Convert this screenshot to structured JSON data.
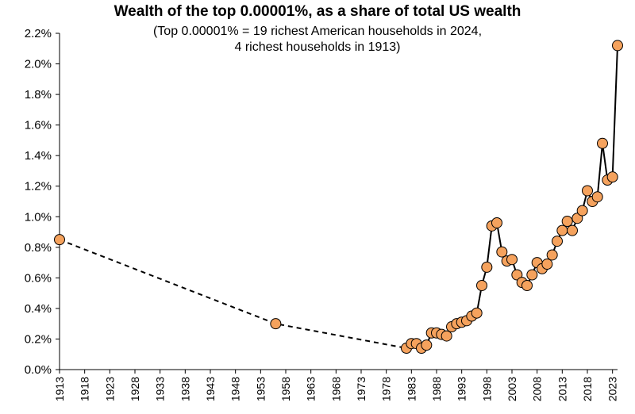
{
  "chart_data": {
    "type": "line",
    "title": "Wealth of the top 0.00001%, as a share of total US wealth",
    "subtitle_lines": [
      "(Top 0.00001% = 19 richest American households in 2024,",
      "4 richest households in 1913)"
    ],
    "xlabel": "",
    "ylabel": "",
    "xlim": [
      1913,
      2025
    ],
    "ylim": [
      0,
      2.2
    ],
    "y_ticks": [
      "0.0%",
      "0.2%",
      "0.4%",
      "0.6%",
      "0.8%",
      "1.0%",
      "1.2%",
      "1.4%",
      "1.6%",
      "1.8%",
      "2.0%",
      "2.2%"
    ],
    "x_ticks": [
      "1913",
      "1918",
      "1923",
      "1928",
      "1933",
      "1938",
      "1943",
      "1948",
      "1953",
      "1958",
      "1963",
      "1968",
      "1973",
      "1978",
      "1983",
      "1988",
      "1993",
      "1998",
      "2003",
      "2008",
      "2013",
      "2018",
      "2023"
    ],
    "grid": false,
    "legend": "none",
    "marker_color": "#F5A25D",
    "marker_edge_color": "#000000",
    "line_color": "#000000",
    "points": [
      {
        "x": 1913,
        "y": 0.85
      },
      {
        "x": 1956,
        "y": 0.3
      },
      {
        "x": 1982,
        "y": 0.14
      },
      {
        "x": 1983,
        "y": 0.17
      },
      {
        "x": 1984,
        "y": 0.17
      },
      {
        "x": 1985,
        "y": 0.14
      },
      {
        "x": 1986,
        "y": 0.16
      },
      {
        "x": 1987,
        "y": 0.24
      },
      {
        "x": 1988,
        "y": 0.24
      },
      {
        "x": 1989,
        "y": 0.23
      },
      {
        "x": 1990,
        "y": 0.22
      },
      {
        "x": 1991,
        "y": 0.28
      },
      {
        "x": 1992,
        "y": 0.3
      },
      {
        "x": 1993,
        "y": 0.31
      },
      {
        "x": 1994,
        "y": 0.32
      },
      {
        "x": 1995,
        "y": 0.35
      },
      {
        "x": 1996,
        "y": 0.37
      },
      {
        "x": 1997,
        "y": 0.55
      },
      {
        "x": 1998,
        "y": 0.67
      },
      {
        "x": 1999,
        "y": 0.94
      },
      {
        "x": 2000,
        "y": 0.96
      },
      {
        "x": 2001,
        "y": 0.77
      },
      {
        "x": 2002,
        "y": 0.71
      },
      {
        "x": 2003,
        "y": 0.72
      },
      {
        "x": 2004,
        "y": 0.62
      },
      {
        "x": 2005,
        "y": 0.57
      },
      {
        "x": 2006,
        "y": 0.55
      },
      {
        "x": 2007,
        "y": 0.62
      },
      {
        "x": 2008,
        "y": 0.7
      },
      {
        "x": 2009,
        "y": 0.66
      },
      {
        "x": 2010,
        "y": 0.69
      },
      {
        "x": 2011,
        "y": 0.75
      },
      {
        "x": 2012,
        "y": 0.84
      },
      {
        "x": 2013,
        "y": 0.91
      },
      {
        "x": 2014,
        "y": 0.97
      },
      {
        "x": 2015,
        "y": 0.91
      },
      {
        "x": 2016,
        "y": 0.99
      },
      {
        "x": 2017,
        "y": 1.04
      },
      {
        "x": 2018,
        "y": 1.17
      },
      {
        "x": 2019,
        "y": 1.1
      },
      {
        "x": 2020,
        "y": 1.13
      },
      {
        "x": 2021,
        "y": 1.48
      },
      {
        "x": 2022,
        "y": 1.24
      },
      {
        "x": 2023,
        "y": 1.26
      },
      {
        "x": 2024,
        "y": 2.12
      }
    ],
    "dashed_until_x": 1982
  }
}
